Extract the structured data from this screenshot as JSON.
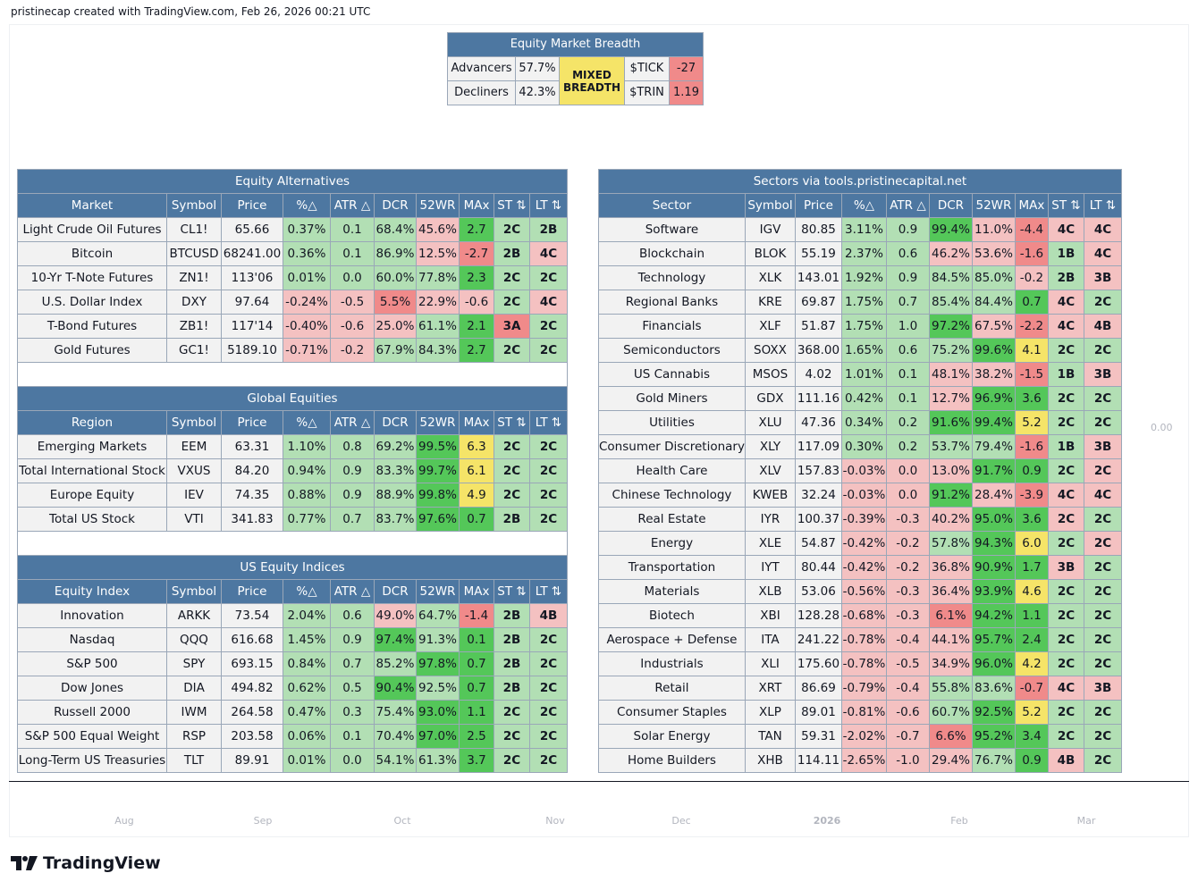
{
  "caption": "pristinecap created with TradingView.com, Feb 26, 2026 00:21 UTC",
  "brand": "TradingView",
  "price_axis_label": "0.00",
  "time_axis": [
    "Aug",
    "Sep",
    "Oct",
    "Nov",
    "Dec",
    "2026",
    "Feb",
    "Mar"
  ],
  "breadth": {
    "title": "Equity Market Breadth",
    "advancers_label": "Advancers",
    "advancers_value": "57.7%",
    "decliners_label": "Decliners",
    "decliners_value": "42.3%",
    "status_line1": "MIXED",
    "status_line2": "BREADTH",
    "tick_label": "$TICK",
    "tick_value": "-27",
    "trin_label": "$TRIN",
    "trin_value": "1.19"
  },
  "left_tables": [
    {
      "title": "Equity Alternatives",
      "headers": [
        "Market",
        "Symbol",
        "Price",
        "%△",
        "ATR △",
        "DCR",
        "52WR",
        "MAx",
        "ST ⇅",
        "LT ⇅"
      ],
      "rows": [
        {
          "cells": [
            "Light Crude Oil Futures",
            "CL1!",
            "65.66",
            "0.37%",
            "0.1",
            "68.4%",
            "45.6%",
            "2.7",
            "2C",
            "2B"
          ],
          "colors": [
            "w",
            "w",
            "w",
            "lg",
            "lg",
            "lg",
            "lr",
            "dg",
            "lg",
            "lg"
          ]
        },
        {
          "cells": [
            "Bitcoin",
            "BTCUSD",
            "68241.00",
            "0.36%",
            "0.1",
            "86.9%",
            "12.5%",
            "-2.7",
            "2B",
            "4C"
          ],
          "colors": [
            "w",
            "w",
            "w",
            "lg",
            "lg",
            "lg",
            "lr",
            "r",
            "lg",
            "lr"
          ]
        },
        {
          "cells": [
            "10-Yr T-Note Futures",
            "ZN1!",
            "113'06",
            "0.01%",
            "0.0",
            "60.0%",
            "77.8%",
            "2.3",
            "2C",
            "2C"
          ],
          "colors": [
            "w",
            "w",
            "w",
            "lg",
            "lg",
            "lg",
            "lg",
            "dg",
            "lg",
            "lg"
          ]
        },
        {
          "cells": [
            "U.S. Dollar Index",
            "DXY",
            "97.64",
            "-0.24%",
            "-0.5",
            "5.5%",
            "22.9%",
            "-0.6",
            "2C",
            "4C"
          ],
          "colors": [
            "w",
            "w",
            "w",
            "lr",
            "lr",
            "r",
            "lr",
            "lr",
            "lg",
            "lr"
          ]
        },
        {
          "cells": [
            "T-Bond Futures",
            "ZB1!",
            "117'14",
            "-0.40%",
            "-0.6",
            "25.0%",
            "61.1%",
            "2.1",
            "3A",
            "2C"
          ],
          "colors": [
            "w",
            "w",
            "w",
            "lr",
            "lr",
            "lr",
            "lg",
            "dg",
            "r",
            "lg"
          ]
        },
        {
          "cells": [
            "Gold Futures",
            "GC1!",
            "5189.10",
            "-0.71%",
            "-0.2",
            "67.9%",
            "84.3%",
            "2.7",
            "2C",
            "2C"
          ],
          "colors": [
            "w",
            "w",
            "w",
            "lr",
            "lr",
            "lg",
            "lg",
            "dg",
            "lg",
            "lg"
          ]
        }
      ]
    },
    {
      "title": "Global Equities",
      "headers": [
        "Region",
        "Symbol",
        "Price",
        "%△",
        "ATR △",
        "DCR",
        "52WR",
        "MAx",
        "ST ⇅",
        "LT ⇅"
      ],
      "rows": [
        {
          "cells": [
            "Emerging Markets",
            "EEM",
            "63.31",
            "1.10%",
            "0.8",
            "69.2%",
            "99.5%",
            "6.3",
            "2C",
            "2C"
          ],
          "colors": [
            "w",
            "w",
            "w",
            "lg",
            "lg",
            "lg",
            "dg",
            "y",
            "lg",
            "lg"
          ]
        },
        {
          "cells": [
            "Total International Stock",
            "VXUS",
            "84.20",
            "0.94%",
            "0.9",
            "83.3%",
            "99.7%",
            "6.1",
            "2C",
            "2C"
          ],
          "colors": [
            "w",
            "w",
            "w",
            "lg",
            "lg",
            "lg",
            "dg",
            "y",
            "lg",
            "lg"
          ]
        },
        {
          "cells": [
            "Europe Equity",
            "IEV",
            "74.35",
            "0.88%",
            "0.9",
            "88.9%",
            "99.8%",
            "4.9",
            "2C",
            "2C"
          ],
          "colors": [
            "w",
            "w",
            "w",
            "lg",
            "lg",
            "lg",
            "dg",
            "y",
            "lg",
            "lg"
          ]
        },
        {
          "cells": [
            "Total US Stock",
            "VTI",
            "341.83",
            "0.77%",
            "0.7",
            "83.7%",
            "97.6%",
            "0.7",
            "2B",
            "2C"
          ],
          "colors": [
            "w",
            "w",
            "w",
            "lg",
            "lg",
            "lg",
            "dg",
            "dg",
            "lg",
            "lg"
          ]
        }
      ]
    },
    {
      "title": "US Equity Indices",
      "headers": [
        "Equity Index",
        "Symbol",
        "Price",
        "%△",
        "ATR △",
        "DCR",
        "52WR",
        "MAx",
        "ST ⇅",
        "LT ⇅"
      ],
      "rows": [
        {
          "cells": [
            "Innovation",
            "ARKK",
            "73.54",
            "2.04%",
            "0.6",
            "49.0%",
            "64.7%",
            "-1.4",
            "2B",
            "4B"
          ],
          "colors": [
            "w",
            "w",
            "w",
            "lg",
            "lg",
            "lr",
            "lg",
            "r",
            "lg",
            "lr"
          ]
        },
        {
          "cells": [
            "Nasdaq",
            "QQQ",
            "616.68",
            "1.45%",
            "0.9",
            "97.4%",
            "91.3%",
            "0.1",
            "2B",
            "2C"
          ],
          "colors": [
            "w",
            "w",
            "w",
            "lg",
            "lg",
            "dg",
            "lg",
            "dg",
            "lg",
            "lg"
          ]
        },
        {
          "cells": [
            "S&P 500",
            "SPY",
            "693.15",
            "0.84%",
            "0.7",
            "85.2%",
            "97.8%",
            "0.7",
            "2B",
            "2C"
          ],
          "colors": [
            "w",
            "w",
            "w",
            "lg",
            "lg",
            "lg",
            "dg",
            "dg",
            "lg",
            "lg"
          ]
        },
        {
          "cells": [
            "Dow Jones",
            "DIA",
            "494.82",
            "0.62%",
            "0.5",
            "90.4%",
            "92.5%",
            "0.7",
            "2B",
            "2C"
          ],
          "colors": [
            "w",
            "w",
            "w",
            "lg",
            "lg",
            "dg",
            "lg",
            "dg",
            "lg",
            "lg"
          ]
        },
        {
          "cells": [
            "Russell 2000",
            "IWM",
            "264.58",
            "0.47%",
            "0.3",
            "75.4%",
            "93.0%",
            "1.1",
            "2C",
            "2C"
          ],
          "colors": [
            "w",
            "w",
            "w",
            "lg",
            "lg",
            "lg",
            "dg",
            "dg",
            "lg",
            "lg"
          ]
        },
        {
          "cells": [
            "S&P 500 Equal Weight",
            "RSP",
            "203.58",
            "0.06%",
            "0.1",
            "70.4%",
            "97.0%",
            "2.5",
            "2C",
            "2C"
          ],
          "colors": [
            "w",
            "w",
            "w",
            "lg",
            "lg",
            "lg",
            "dg",
            "dg",
            "lg",
            "lg"
          ]
        },
        {
          "cells": [
            "Long-Term US Treasuries",
            "TLT",
            "89.91",
            "0.01%",
            "0.0",
            "54.1%",
            "61.3%",
            "3.7",
            "2C",
            "2C"
          ],
          "colors": [
            "w",
            "w",
            "w",
            "lg",
            "lg",
            "lg",
            "lg",
            "dg",
            "lg",
            "lg"
          ]
        }
      ]
    }
  ],
  "sectors": {
    "title": "Sectors via tools.pristinecapital.net",
    "headers": [
      "Sector",
      "Symbol",
      "Price",
      "%△",
      "ATR △",
      "DCR",
      "52WR",
      "MAx",
      "ST ⇅",
      "LT ⇅"
    ],
    "rows": [
      {
        "cells": [
          "Software",
          "IGV",
          "80.85",
          "3.11%",
          "0.9",
          "99.4%",
          "11.0%",
          "-4.4",
          "4C",
          "4C"
        ],
        "colors": [
          "w",
          "w",
          "w",
          "lg",
          "lg",
          "dg",
          "lr",
          "r",
          "lr",
          "lr"
        ]
      },
      {
        "cells": [
          "Blockchain",
          "BLOK",
          "55.19",
          "2.37%",
          "0.6",
          "46.2%",
          "53.6%",
          "-1.6",
          "1B",
          "4C"
        ],
        "colors": [
          "w",
          "w",
          "w",
          "lg",
          "lg",
          "lr",
          "lr",
          "r",
          "lg",
          "lr"
        ]
      },
      {
        "cells": [
          "Technology",
          "XLK",
          "143.01",
          "1.92%",
          "0.9",
          "84.5%",
          "85.0%",
          "-0.2",
          "2B",
          "3B"
        ],
        "colors": [
          "w",
          "w",
          "w",
          "lg",
          "lg",
          "lg",
          "lg",
          "lr",
          "lg",
          "lr"
        ]
      },
      {
        "cells": [
          "Regional Banks",
          "KRE",
          "69.87",
          "1.75%",
          "0.7",
          "85.4%",
          "84.4%",
          "0.7",
          "4C",
          "2C"
        ],
        "colors": [
          "w",
          "w",
          "w",
          "lg",
          "lg",
          "lg",
          "lg",
          "dg",
          "lr",
          "lg"
        ]
      },
      {
        "cells": [
          "Financials",
          "XLF",
          "51.87",
          "1.75%",
          "1.0",
          "97.2%",
          "67.5%",
          "-2.2",
          "4C",
          "4B"
        ],
        "colors": [
          "w",
          "w",
          "w",
          "lg",
          "lg",
          "dg",
          "lr",
          "r",
          "lr",
          "lr"
        ]
      },
      {
        "cells": [
          "Semiconductors",
          "SOXX",
          "368.00",
          "1.65%",
          "0.6",
          "75.2%",
          "99.6%",
          "4.1",
          "2C",
          "2C"
        ],
        "colors": [
          "w",
          "w",
          "w",
          "lg",
          "lg",
          "lg",
          "dg",
          "y",
          "lg",
          "lg"
        ]
      },
      {
        "cells": [
          "US Cannabis",
          "MSOS",
          "4.02",
          "1.01%",
          "0.1",
          "48.1%",
          "38.2%",
          "-1.5",
          "1B",
          "3B"
        ],
        "colors": [
          "w",
          "w",
          "w",
          "lg",
          "lg",
          "lr",
          "lr",
          "r",
          "lg",
          "lr"
        ]
      },
      {
        "cells": [
          "Gold Miners",
          "GDX",
          "111.16",
          "0.42%",
          "0.1",
          "12.7%",
          "96.9%",
          "3.6",
          "2C",
          "2C"
        ],
        "colors": [
          "w",
          "w",
          "w",
          "lg",
          "lg",
          "lr",
          "dg",
          "dg",
          "lg",
          "lg"
        ]
      },
      {
        "cells": [
          "Utilities",
          "XLU",
          "47.36",
          "0.34%",
          "0.2",
          "91.6%",
          "99.4%",
          "5.2",
          "2C",
          "2C"
        ],
        "colors": [
          "w",
          "w",
          "w",
          "lg",
          "lg",
          "dg",
          "dg",
          "y",
          "lg",
          "lg"
        ]
      },
      {
        "cells": [
          "Consumer Discretionary",
          "XLY",
          "117.09",
          "0.30%",
          "0.2",
          "53.7%",
          "79.4%",
          "-1.6",
          "1B",
          "3B"
        ],
        "colors": [
          "w",
          "w",
          "w",
          "lg",
          "lg",
          "lg",
          "lg",
          "r",
          "lg",
          "lr"
        ]
      },
      {
        "cells": [
          "Health Care",
          "XLV",
          "157.83",
          "-0.03%",
          "0.0",
          "13.0%",
          "91.7%",
          "0.9",
          "2C",
          "2C"
        ],
        "colors": [
          "w",
          "w",
          "w",
          "lr",
          "lr",
          "lr",
          "dg",
          "dg",
          "lg",
          "lr"
        ]
      },
      {
        "cells": [
          "Chinese Technology",
          "KWEB",
          "32.24",
          "-0.03%",
          "0.0",
          "91.2%",
          "28.4%",
          "-3.9",
          "4C",
          "4C"
        ],
        "colors": [
          "w",
          "w",
          "w",
          "lr",
          "lr",
          "dg",
          "lr",
          "r",
          "lr",
          "lr"
        ]
      },
      {
        "cells": [
          "Real Estate",
          "IYR",
          "100.37",
          "-0.39%",
          "-0.3",
          "40.2%",
          "95.0%",
          "3.6",
          "2C",
          "2C"
        ],
        "colors": [
          "w",
          "w",
          "w",
          "lr",
          "lr",
          "lr",
          "dg",
          "dg",
          "lr",
          "lg"
        ]
      },
      {
        "cells": [
          "Energy",
          "XLE",
          "54.87",
          "-0.42%",
          "-0.2",
          "57.8%",
          "94.3%",
          "6.0",
          "2C",
          "2C"
        ],
        "colors": [
          "w",
          "w",
          "w",
          "lr",
          "lr",
          "lg",
          "dg",
          "y",
          "lg",
          "lr"
        ]
      },
      {
        "cells": [
          "Transportation",
          "IYT",
          "80.44",
          "-0.42%",
          "-0.2",
          "36.8%",
          "90.9%",
          "1.7",
          "3B",
          "2C"
        ],
        "colors": [
          "w",
          "w",
          "w",
          "lr",
          "lr",
          "lr",
          "dg",
          "dg",
          "lr",
          "lg"
        ]
      },
      {
        "cells": [
          "Materials",
          "XLB",
          "53.06",
          "-0.56%",
          "-0.3",
          "36.4%",
          "93.9%",
          "4.6",
          "2C",
          "2C"
        ],
        "colors": [
          "w",
          "w",
          "w",
          "lr",
          "lr",
          "lr",
          "dg",
          "y",
          "lg",
          "lg"
        ]
      },
      {
        "cells": [
          "Biotech",
          "XBI",
          "128.28",
          "-0.68%",
          "-0.3",
          "6.1%",
          "94.2%",
          "1.1",
          "2C",
          "2C"
        ],
        "colors": [
          "w",
          "w",
          "w",
          "lr",
          "lr",
          "r",
          "dg",
          "dg",
          "lg",
          "lg"
        ]
      },
      {
        "cells": [
          "Aerospace + Defense",
          "ITA",
          "241.22",
          "-0.78%",
          "-0.4",
          "44.1%",
          "95.7%",
          "2.4",
          "2C",
          "2C"
        ],
        "colors": [
          "w",
          "w",
          "w",
          "lr",
          "lr",
          "lr",
          "dg",
          "dg",
          "lg",
          "lg"
        ]
      },
      {
        "cells": [
          "Industrials",
          "XLI",
          "175.60",
          "-0.78%",
          "-0.5",
          "34.9%",
          "96.0%",
          "4.2",
          "2C",
          "2C"
        ],
        "colors": [
          "w",
          "w",
          "w",
          "lr",
          "lr",
          "lr",
          "dg",
          "y",
          "lg",
          "lg"
        ]
      },
      {
        "cells": [
          "Retail",
          "XRT",
          "86.69",
          "-0.79%",
          "-0.4",
          "55.8%",
          "83.6%",
          "-0.7",
          "4C",
          "3B"
        ],
        "colors": [
          "w",
          "w",
          "w",
          "lr",
          "lr",
          "lg",
          "lg",
          "r",
          "lr",
          "lr"
        ]
      },
      {
        "cells": [
          "Consumer Staples",
          "XLP",
          "89.01",
          "-0.81%",
          "-0.6",
          "60.7%",
          "92.5%",
          "5.2",
          "2C",
          "2C"
        ],
        "colors": [
          "w",
          "w",
          "w",
          "lr",
          "lr",
          "lg",
          "dg",
          "y",
          "lg",
          "lg"
        ]
      },
      {
        "cells": [
          "Solar Energy",
          "TAN",
          "59.31",
          "-2.02%",
          "-0.7",
          "6.6%",
          "95.2%",
          "3.4",
          "2C",
          "2C"
        ],
        "colors": [
          "w",
          "w",
          "w",
          "lr",
          "lr",
          "r",
          "dg",
          "dg",
          "lg",
          "lg"
        ]
      },
      {
        "cells": [
          "Home Builders",
          "XHB",
          "114.11",
          "-2.65%",
          "-1.0",
          "29.4%",
          "76.7%",
          "0.9",
          "4B",
          "2C"
        ],
        "colors": [
          "w",
          "w",
          "w",
          "lr",
          "lr",
          "lr",
          "lg",
          "dg",
          "lr",
          "lg"
        ]
      }
    ]
  }
}
